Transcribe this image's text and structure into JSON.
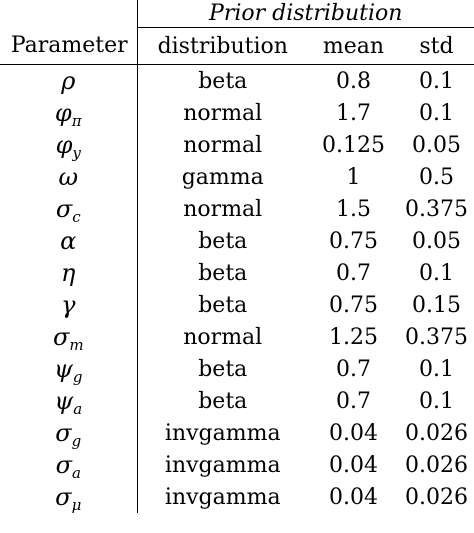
{
  "table": {
    "group_header": "Prior distribution",
    "columns": {
      "parameter": "Parameter",
      "distribution": "distribution",
      "mean": "mean",
      "std": "std"
    },
    "rows": [
      {
        "param": "ρ",
        "sub": "",
        "distribution": "beta",
        "mean": "0.8",
        "std": "0.1"
      },
      {
        "param": "φ",
        "sub": "π",
        "distribution": "normal",
        "mean": "1.7",
        "std": "0.1"
      },
      {
        "param": "φ",
        "sub": "y",
        "distribution": "normal",
        "mean": "0.125",
        "std": "0.05"
      },
      {
        "param": "ω",
        "sub": "",
        "distribution": "gamma",
        "mean": "1",
        "std": "0.5"
      },
      {
        "param": "σ",
        "sub": "c",
        "distribution": "normal",
        "mean": "1.5",
        "std": "0.375"
      },
      {
        "param": "α",
        "sub": "",
        "distribution": "beta",
        "mean": "0.75",
        "std": "0.05"
      },
      {
        "param": "η",
        "sub": "",
        "distribution": "beta",
        "mean": "0.7",
        "std": "0.1"
      },
      {
        "param": "γ",
        "sub": "",
        "distribution": "beta",
        "mean": "0.75",
        "std": "0.15"
      },
      {
        "param": "σ",
        "sub": "m",
        "distribution": "normal",
        "mean": "1.25",
        "std": "0.375"
      },
      {
        "param": "ψ",
        "sub": "g",
        "distribution": "beta",
        "mean": "0.7",
        "std": "0.1"
      },
      {
        "param": "ψ",
        "sub": "a",
        "distribution": "beta",
        "mean": "0.7",
        "std": "0.1"
      },
      {
        "param": "σ",
        "sub": "g",
        "distribution": "invgamma",
        "mean": "0.04",
        "std": "0.026"
      },
      {
        "param": "σ",
        "sub": "a",
        "distribution": "invgamma",
        "mean": "0.04",
        "std": "0.026"
      },
      {
        "param": "σ",
        "sub": "μ",
        "distribution": "invgamma",
        "mean": "0.04",
        "std": "0.026"
      }
    ]
  }
}
